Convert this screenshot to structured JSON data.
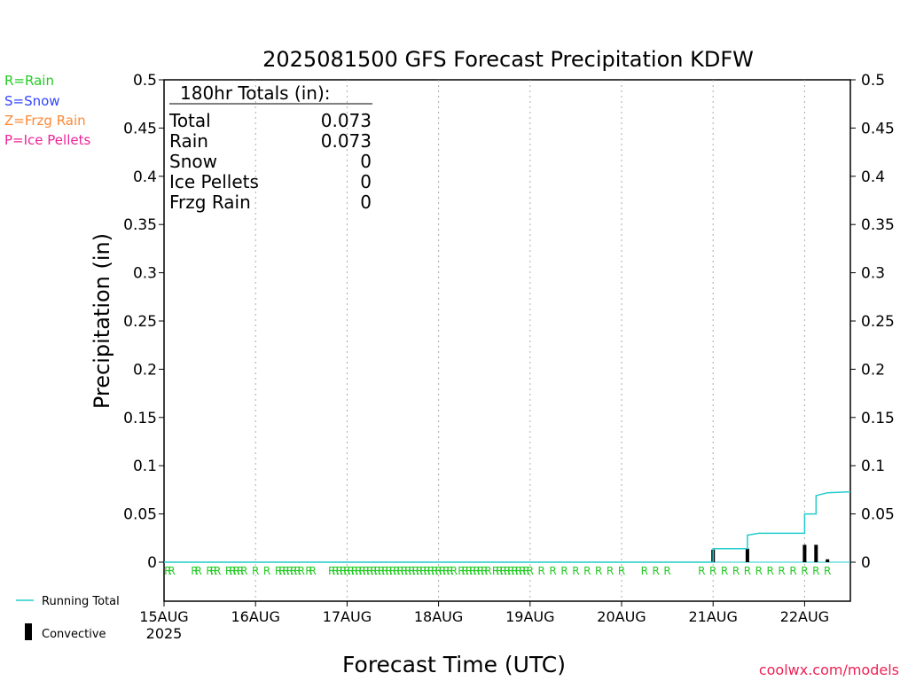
{
  "title": "2025081500 GFS Forecast Precipitation KDFW",
  "legend_types": [
    {
      "label": "R=Rain",
      "color": "#22cc22"
    },
    {
      "label": "S=Snow",
      "color": "#3344ff"
    },
    {
      "label": "Z=Frzg Rain",
      "color": "#ff8833"
    },
    {
      "label": "P=Ice Pellets",
      "color": "#ee2299"
    }
  ],
  "totals_box": {
    "header": "180hr Totals (in):",
    "rows": [
      {
        "label": "Total",
        "value": "0.073"
      },
      {
        "label": "Rain",
        "value": "0.073"
      },
      {
        "label": "Snow",
        "value": "0"
      },
      {
        "label": "Ice Pellets",
        "value": "0"
      },
      {
        "label": "Frzg Rain",
        "value": "0"
      }
    ]
  },
  "bottom_legend": {
    "running_total_label": "Running Total",
    "convective_label": "Convective",
    "running_total_color": "#22cccc",
    "convective_color": "#000000"
  },
  "footer": {
    "credit": "coolwx.com/models",
    "credit_color": "#ee2255"
  },
  "chart_data": {
    "type": "bar",
    "ylabel": "Precipitation (in)",
    "xlabel": "Forecast Time (UTC)",
    "ylim": [
      0,
      0.5
    ],
    "y_ticks": [
      "0",
      "0.05",
      "0.1",
      "0.15",
      "0.2",
      "0.25",
      "0.3",
      "0.35",
      "0.4",
      "0.45",
      "0.5"
    ],
    "x_range_hours": [
      0,
      180
    ],
    "x_ticks": [
      {
        "hour": 0,
        "label": "15AUG",
        "sublabel": "2025"
      },
      {
        "hour": 24,
        "label": "16AUG"
      },
      {
        "hour": 48,
        "label": "17AUG"
      },
      {
        "hour": 72,
        "label": "18AUG"
      },
      {
        "hour": 96,
        "label": "19AUG"
      },
      {
        "hour": 120,
        "label": "20AUG"
      },
      {
        "hour": 144,
        "label": "21AUG"
      },
      {
        "hour": 168,
        "label": "22AUG"
      }
    ],
    "grid": "vertical dotted",
    "running_total": [
      {
        "hour": 0,
        "value": 0
      },
      {
        "hour": 144,
        "value": 0
      },
      {
        "hour": 144,
        "value": 0.014
      },
      {
        "hour": 153,
        "value": 0.014
      },
      {
        "hour": 153,
        "value": 0.028
      },
      {
        "hour": 156,
        "value": 0.03
      },
      {
        "hour": 168,
        "value": 0.03
      },
      {
        "hour": 168,
        "value": 0.032
      },
      {
        "hour": 168,
        "value": 0.05
      },
      {
        "hour": 171,
        "value": 0.05
      },
      {
        "hour": 171,
        "value": 0.069
      },
      {
        "hour": 174,
        "value": 0.072
      },
      {
        "hour": 180,
        "value": 0.073
      }
    ],
    "convective_bars": [
      {
        "hour": 144,
        "value": 0.013
      },
      {
        "hour": 153,
        "value": 0.014
      },
      {
        "hour": 168,
        "value": 0.001
      },
      {
        "hour": 168,
        "value": 0.018
      },
      {
        "hour": 171,
        "value": 0.018
      },
      {
        "hour": 174,
        "value": 0.003
      }
    ],
    "precip_type_markers": {
      "symbol": "R",
      "hours": [
        1,
        2,
        8,
        9,
        12,
        13,
        14,
        17,
        18,
        19,
        20,
        21,
        24,
        27,
        30,
        31,
        32,
        33,
        34,
        35,
        36,
        38,
        39,
        44,
        45,
        46,
        47,
        48,
        49,
        50,
        51,
        52,
        53,
        54,
        55,
        56,
        57,
        58,
        59,
        60,
        61,
        62,
        63,
        64,
        65,
        66,
        67,
        68,
        69,
        70,
        71,
        72,
        73,
        74,
        75,
        76,
        78,
        79,
        80,
        81,
        82,
        83,
        84,
        85,
        87,
        88,
        89,
        90,
        91,
        92,
        93,
        94,
        95,
        96,
        99,
        102,
        105,
        108,
        111,
        114,
        117,
        120,
        126,
        129,
        132,
        141,
        144,
        147,
        150,
        153,
        156,
        159,
        162,
        165,
        168,
        171,
        174
      ]
    },
    "series": [
      {
        "name": "Running Total",
        "color": "#22cccc"
      },
      {
        "name": "Convective",
        "color": "#000000"
      }
    ]
  }
}
